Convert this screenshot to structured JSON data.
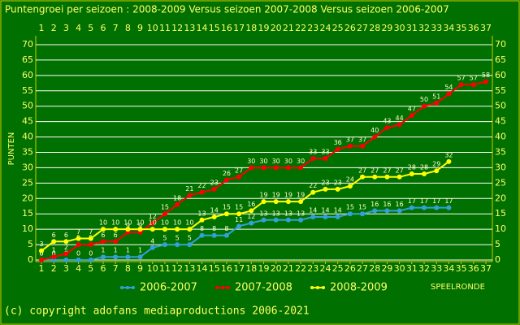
{
  "chart_data": {
    "type": "line",
    "title": "Puntengroei per seizoen : 2008-2009 Versus seizoen 2007-2008 Versus seizoen 2006-2007",
    "y_label": "PUNTEN",
    "x_label": "SPEELRONDE",
    "footer": "(c) copyright adofans mediaproductions 2006-2021",
    "x": [
      1,
      2,
      3,
      4,
      5,
      6,
      7,
      8,
      9,
      10,
      11,
      12,
      13,
      14,
      15,
      16,
      17,
      18,
      19,
      20,
      21,
      22,
      23,
      24,
      25,
      26,
      27,
      28,
      29,
      30,
      31,
      32,
      33,
      34,
      35,
      36,
      37
    ],
    "xlim": [
      1,
      37
    ],
    "xticks": [
      1,
      2,
      3,
      4,
      5,
      6,
      7,
      8,
      9,
      10,
      11,
      12,
      13,
      14,
      15,
      16,
      17,
      18,
      19,
      20,
      21,
      22,
      23,
      24,
      25,
      26,
      27,
      28,
      29,
      30,
      31,
      32,
      33,
      34,
      35,
      36,
      37
    ],
    "ylim": [
      0,
      70
    ],
    "yticks": [
      0,
      5,
      10,
      15,
      20,
      25,
      30,
      35,
      40,
      45,
      50,
      55,
      60,
      65,
      70
    ],
    "grid": true,
    "series": [
      {
        "name": "2006-2007",
        "color": "#33a0d8",
        "values": [
          0,
          0,
          0,
          0,
          0,
          1,
          1,
          1,
          1,
          4,
          5,
          5,
          5,
          8,
          8,
          8,
          11,
          12,
          13,
          13,
          13,
          13,
          14,
          14,
          14,
          15,
          15,
          16,
          16,
          16,
          17,
          17,
          17,
          17,
          null,
          null,
          null
        ]
      },
      {
        "name": "2007-2008",
        "color": "#ff0000",
        "values": [
          0,
          1,
          2,
          5,
          5,
          6,
          6,
          9,
          9,
          12,
          15,
          18,
          21,
          22,
          23,
          26,
          27,
          30,
          30,
          30,
          30,
          30,
          33,
          33,
          36,
          37,
          37,
          40,
          43,
          44,
          47,
          50,
          51,
          54,
          57,
          57,
          58
        ]
      },
      {
        "name": "2008-2009",
        "color": "#ffff00",
        "values": [
          3,
          6,
          6,
          7,
          7,
          10,
          10,
          10,
          10,
          10,
          10,
          10,
          10,
          13,
          14,
          15,
          15,
          16,
          19,
          19,
          19,
          19,
          22,
          23,
          23,
          24,
          27,
          27,
          27,
          27,
          28,
          28,
          29,
          32,
          null,
          null,
          null
        ]
      }
    ]
  }
}
